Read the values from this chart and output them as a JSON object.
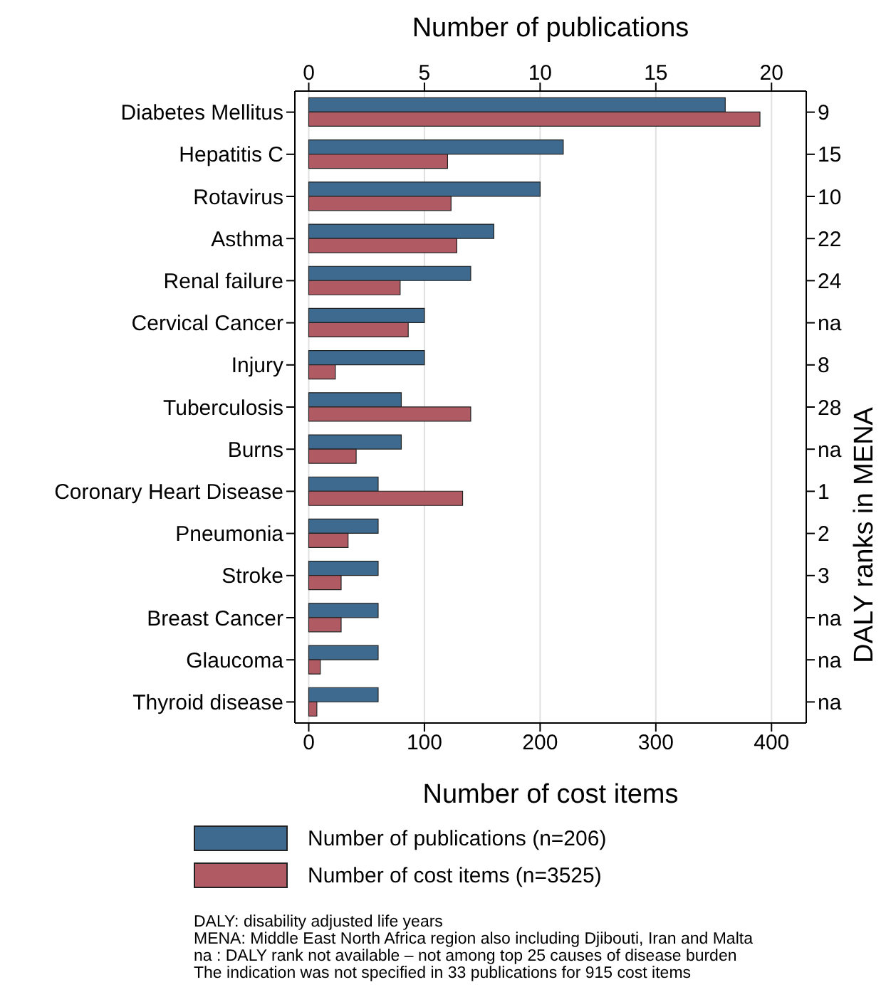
{
  "chart_data": {
    "type": "bar",
    "orientation": "horizontal",
    "categories": [
      "Diabetes Mellitus",
      "Hepatitis C",
      "Rotavirus",
      "Asthma",
      "Renal failure",
      "Cervical Cancer",
      "Injury",
      "Tuberculosis",
      "Burns",
      "Coronary Heart Disease",
      "Pneumonia",
      "Stroke",
      "Breast Cancer",
      "Glaucoma",
      "Thyroid disease"
    ],
    "y2_categories": [
      "9",
      "15",
      "10",
      "22",
      "24",
      "na",
      "8",
      "28",
      "na",
      "1",
      "2",
      "3",
      "na",
      "na",
      "na"
    ],
    "series": [
      {
        "name": "Number of publications (n=206)",
        "color": "#3d6a8e",
        "axis": "x2",
        "values": [
          18,
          11,
          10,
          8,
          7,
          5,
          5,
          4,
          4,
          3,
          3,
          3,
          3,
          3,
          3
        ]
      },
      {
        "name": "Number of cost items (n=3525)",
        "color": "#b05a64",
        "values": [
          390,
          120,
          123,
          128,
          79,
          86,
          23,
          140,
          41,
          133,
          34,
          28,
          28,
          10,
          7
        ]
      }
    ],
    "xlabel": "Number of cost items",
    "x2label": "Number of publications",
    "y2label": "DALY ranks in MENA",
    "xlim": [
      -12,
      430
    ],
    "xticks": [
      0,
      100,
      200,
      300,
      400
    ],
    "x2lim": [
      -0.6,
      21.5
    ],
    "x2ticks": [
      0,
      5,
      10,
      15,
      20
    ],
    "grid": "x",
    "legend": "bottom",
    "annotations": [
      "DALY: disability adjusted life years",
      "MENA: Middle East North Africa region also including Djibouti, Iran and Malta",
      "na : DALY rank not available – not among top 25 causes of disease burden",
      "The indication was not specified in 33 publications for 915 cost items"
    ]
  }
}
